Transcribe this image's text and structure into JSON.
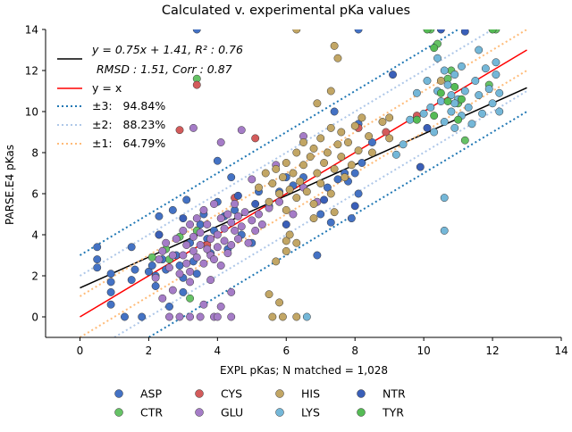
{
  "chart_data": {
    "type": "scatter",
    "title": "Calculated v. experimental pKa values",
    "xlabel": "EXPL pKas; N matched = 1,028",
    "ylabel": "PARSE.E4 pKas",
    "xlim": [
      -1,
      14
    ],
    "ylim": [
      -1,
      14
    ],
    "xticks": [
      0,
      2,
      4,
      6,
      8,
      10,
      12,
      14
    ],
    "yticks": [
      0,
      2,
      4,
      6,
      8,
      10,
      12,
      14
    ],
    "grid": false,
    "lines": [
      {
        "name": "fit",
        "label_line1": "y = 0.75x + 1.41, R² : 0.76",
        "label_line2": "RMSD : 1.51, Corr : 0.87",
        "slope": 0.75,
        "intercept": 1.41,
        "color": "#000000",
        "style": "solid"
      },
      {
        "name": "identity",
        "label": "y = x",
        "slope": 1,
        "intercept": 0,
        "color": "#ff0000",
        "style": "solid"
      },
      {
        "name": "band3",
        "label": "±3:   94.84%",
        "offset": 3,
        "color": "#1f77b4",
        "style": "dotted"
      },
      {
        "name": "band2",
        "label": "±2:   88.23%",
        "offset": 2,
        "color": "#aec7e8",
        "style": "dotted"
      },
      {
        "name": "band1",
        "label": "±1:   64.79%",
        "offset": 1,
        "color": "#ffbb78",
        "style": "dotted"
      }
    ],
    "groups": [
      {
        "name": "ASP",
        "color": "#4472c4",
        "points": [
          [
            0.5,
            3.4
          ],
          [
            0.5,
            2.4
          ],
          [
            0.5,
            2.8
          ],
          [
            0.9,
            2.1
          ],
          [
            0.9,
            1.7
          ],
          [
            0.9,
            1.2
          ],
          [
            0.9,
            0.6
          ],
          [
            1.3,
            0.0
          ],
          [
            1.5,
            3.4
          ],
          [
            1.5,
            1.8
          ],
          [
            1.6,
            2.3
          ],
          [
            1.8,
            0.0
          ],
          [
            2.0,
            2.2
          ],
          [
            2.1,
            2.5
          ],
          [
            2.2,
            2.0
          ],
          [
            2.2,
            1.5
          ],
          [
            2.3,
            4.9
          ],
          [
            2.3,
            4.0
          ],
          [
            2.4,
            2.8
          ],
          [
            2.5,
            2.3
          ],
          [
            2.6,
            0.5
          ],
          [
            2.7,
            5.2
          ],
          [
            2.8,
            3.0
          ],
          [
            2.9,
            2.5
          ],
          [
            3.0,
            1.9
          ],
          [
            3.0,
            1.2
          ],
          [
            3.1,
            5.7
          ],
          [
            3.2,
            3.6
          ],
          [
            3.3,
            2.7
          ],
          [
            3.4,
            2.1
          ],
          [
            3.5,
            4.5
          ],
          [
            3.6,
            5.0
          ],
          [
            3.7,
            3.8
          ],
          [
            3.8,
            3.1
          ],
          [
            3.9,
            4.2
          ],
          [
            4.0,
            7.6
          ],
          [
            4.0,
            5.6
          ],
          [
            4.2,
            4.9
          ],
          [
            4.3,
            3.3
          ],
          [
            4.4,
            6.8
          ],
          [
            4.5,
            5.2
          ],
          [
            4.7,
            4.0
          ],
          [
            5.0,
            3.6
          ],
          [
            5.2,
            6.1
          ],
          [
            5.5,
            5.4
          ],
          [
            5.8,
            6.1
          ],
          [
            6.0,
            6.8
          ],
          [
            6.2,
            6.4
          ],
          [
            6.5,
            6.8
          ],
          [
            7.0,
            5.0
          ],
          [
            7.2,
            6.3
          ],
          [
            7.5,
            6.7
          ],
          [
            7.8,
            6.6
          ],
          [
            8.0,
            7.0
          ],
          [
            8.2,
            7.5
          ],
          [
            8.5,
            8.5
          ],
          [
            8.1,
            9.4
          ],
          [
            8.1,
            14.0
          ],
          [
            7.7,
            7.0
          ],
          [
            6.9,
            3.0
          ],
          [
            3.4,
            14.0
          ],
          [
            7.3,
            4.6
          ],
          [
            7.9,
            4.8
          ],
          [
            8.1,
            6.0
          ],
          [
            7.4,
            10.0
          ]
        ]
      },
      {
        "name": "CTR",
        "color": "#66c266",
        "points": [
          [
            2.1,
            2.9
          ],
          [
            2.5,
            3.3
          ],
          [
            2.9,
            3.9
          ],
          [
            3.4,
            4.2
          ],
          [
            3.2,
            0.9
          ],
          [
            2.6,
            2.8
          ],
          [
            10.2,
            14.0
          ],
          [
            10.4,
            13.3
          ],
          [
            10.7,
            11.6
          ],
          [
            11.0,
            10.4
          ],
          [
            11.2,
            8.6
          ],
          [
            11.9,
            11.3
          ],
          [
            12.1,
            14.0
          ],
          [
            3.4,
            11.6
          ],
          [
            10.8,
            12.0
          ]
        ]
      },
      {
        "name": "CYS",
        "color": "#d35b5b",
        "points": [
          [
            2.9,
            9.1
          ],
          [
            3.4,
            11.3
          ],
          [
            5.1,
            8.7
          ],
          [
            8.1,
            9.2
          ],
          [
            8.9,
            9.0
          ],
          [
            3.7,
            3.5
          ],
          [
            4.5,
            5.8
          ],
          [
            9.8,
            9.8
          ]
        ]
      },
      {
        "name": "GLU",
        "color": "#a57cc7",
        "points": [
          [
            2.2,
            1.9
          ],
          [
            2.3,
            2.8
          ],
          [
            2.4,
            3.2
          ],
          [
            2.5,
            3.6
          ],
          [
            2.6,
            2.4
          ],
          [
            2.7,
            3.0
          ],
          [
            2.8,
            3.8
          ],
          [
            2.9,
            2.1
          ],
          [
            3.0,
            4.2
          ],
          [
            3.0,
            3.0
          ],
          [
            3.1,
            2.6
          ],
          [
            3.1,
            3.5
          ],
          [
            3.2,
            4.5
          ],
          [
            3.2,
            2.2
          ],
          [
            3.3,
            3.2
          ],
          [
            3.3,
            3.9
          ],
          [
            3.4,
            4.8
          ],
          [
            3.4,
            2.9
          ],
          [
            3.5,
            3.5
          ],
          [
            3.5,
            4.1
          ],
          [
            3.6,
            2.6
          ],
          [
            3.6,
            5.2
          ],
          [
            3.7,
            3.3
          ],
          [
            3.7,
            4.5
          ],
          [
            3.8,
            3.0
          ],
          [
            3.8,
            3.8
          ],
          [
            3.9,
            5.5
          ],
          [
            3.9,
            2.8
          ],
          [
            4.0,
            4.0
          ],
          [
            4.0,
            3.4
          ],
          [
            4.1,
            4.8
          ],
          [
            4.1,
            2.5
          ],
          [
            4.2,
            3.7
          ],
          [
            4.2,
            4.3
          ],
          [
            4.3,
            5.0
          ],
          [
            4.3,
            3.1
          ],
          [
            4.4,
            4.6
          ],
          [
            4.4,
            3.5
          ],
          [
            4.5,
            4.2
          ],
          [
            4.5,
            5.5
          ],
          [
            4.6,
            3.8
          ],
          [
            4.6,
            4.9
          ],
          [
            4.7,
            4.4
          ],
          [
            4.8,
            5.1
          ],
          [
            4.9,
            3.6
          ],
          [
            5.0,
            4.7
          ],
          [
            5.1,
            4.2
          ],
          [
            5.2,
            5.0
          ],
          [
            5.3,
            4.5
          ],
          [
            5.5,
            5.3
          ],
          [
            5.8,
            5.6
          ],
          [
            6.2,
            5.0
          ],
          [
            6.5,
            6.3
          ],
          [
            6.9,
            5.6
          ],
          [
            3.3,
            9.2
          ],
          [
            4.1,
            8.5
          ],
          [
            4.7,
            9.1
          ],
          [
            5.0,
            6.7
          ],
          [
            2.6,
            0.0
          ],
          [
            3.5,
            0.0
          ],
          [
            3.9,
            0.0
          ],
          [
            4.1,
            0.5
          ],
          [
            4.4,
            1.2
          ],
          [
            3.2,
            1.7
          ],
          [
            2.9,
            0.0
          ],
          [
            4.4,
            0.0
          ],
          [
            3.6,
            0.6
          ],
          [
            4.0,
            0.0
          ],
          [
            3.2,
            0.0
          ],
          [
            5.7,
            7.4
          ],
          [
            6.5,
            8.8
          ],
          [
            2.4,
            0.9
          ],
          [
            3.8,
            1.8
          ],
          [
            2.7,
            1.3
          ]
        ]
      },
      {
        "name": "HIS",
        "color": "#c2a665",
        "points": [
          [
            5.2,
            6.3
          ],
          [
            5.4,
            7.0
          ],
          [
            5.5,
            5.6
          ],
          [
            5.6,
            6.5
          ],
          [
            5.7,
            7.2
          ],
          [
            5.8,
            6.0
          ],
          [
            5.9,
            6.8
          ],
          [
            6.0,
            5.2
          ],
          [
            6.0,
            7.5
          ],
          [
            6.1,
            6.2
          ],
          [
            6.2,
            7.0
          ],
          [
            6.3,
            5.8
          ],
          [
            6.3,
            8.0
          ],
          [
            6.4,
            6.6
          ],
          [
            6.5,
            7.4
          ],
          [
            6.5,
            8.5
          ],
          [
            6.6,
            6.1
          ],
          [
            6.7,
            7.8
          ],
          [
            6.8,
            8.2
          ],
          [
            6.8,
            5.5
          ],
          [
            6.9,
            7.0
          ],
          [
            7.0,
            8.7
          ],
          [
            7.0,
            6.5
          ],
          [
            7.1,
            7.5
          ],
          [
            7.2,
            8.0
          ],
          [
            7.3,
            6.0
          ],
          [
            7.3,
            9.2
          ],
          [
            7.4,
            7.2
          ],
          [
            7.5,
            8.4
          ],
          [
            7.6,
            7.8
          ],
          [
            7.6,
            9.0
          ],
          [
            7.7,
            6.8
          ],
          [
            7.8,
            8.5
          ],
          [
            7.9,
            7.4
          ],
          [
            8.0,
            9.3
          ],
          [
            8.1,
            8.1
          ],
          [
            8.2,
            9.7
          ],
          [
            8.4,
            8.8
          ],
          [
            8.5,
            8.0
          ],
          [
            8.8,
            9.5
          ],
          [
            9.0,
            8.7
          ],
          [
            6.3,
            14.0
          ],
          [
            7.4,
            13.2
          ],
          [
            7.5,
            12.6
          ],
          [
            7.3,
            11.0
          ],
          [
            6.9,
            10.4
          ],
          [
            9.0,
            9.7
          ],
          [
            5.6,
            0.0
          ],
          [
            5.9,
            0.0
          ],
          [
            6.3,
            0.0
          ],
          [
            6.0,
            3.2
          ],
          [
            5.7,
            2.7
          ],
          [
            5.5,
            1.1
          ],
          [
            5.8,
            0.7
          ],
          [
            6.0,
            3.7
          ],
          [
            6.3,
            3.6
          ],
          [
            7.4,
            5.1
          ],
          [
            6.1,
            4.0
          ],
          [
            6.8,
            4.8
          ],
          [
            10.5,
            11.5
          ]
        ]
      },
      {
        "name": "LYS",
        "color": "#74b7d8",
        "points": [
          [
            9.4,
            8.4
          ],
          [
            9.6,
            9.6
          ],
          [
            9.8,
            10.9
          ],
          [
            10.0,
            9.9
          ],
          [
            10.1,
            11.5
          ],
          [
            10.2,
            10.2
          ],
          [
            10.3,
            9.0
          ],
          [
            10.4,
            11.0
          ],
          [
            10.5,
            10.5
          ],
          [
            10.6,
            9.5
          ],
          [
            10.6,
            12.0
          ],
          [
            10.7,
            11.3
          ],
          [
            10.8,
            10.0
          ],
          [
            10.9,
            9.2
          ],
          [
            10.9,
            11.8
          ],
          [
            11.0,
            10.6
          ],
          [
            11.1,
            9.8
          ],
          [
            11.1,
            12.2
          ],
          [
            11.2,
            11.0
          ],
          [
            11.3,
            10.2
          ],
          [
            11.4,
            9.4
          ],
          [
            11.5,
            11.5
          ],
          [
            11.6,
            10.8
          ],
          [
            11.7,
            9.9
          ],
          [
            11.8,
            12.1
          ],
          [
            11.9,
            11.1
          ],
          [
            12.0,
            10.4
          ],
          [
            12.1,
            11.8
          ],
          [
            12.2,
            10.0
          ],
          [
            12.2,
            10.9
          ],
          [
            10.6,
            5.8
          ],
          [
            10.6,
            4.2
          ],
          [
            9.2,
            7.9
          ],
          [
            6.6,
            0.0
          ],
          [
            12.1,
            12.4
          ],
          [
            11.6,
            13.0
          ],
          [
            10.9,
            10.4
          ],
          [
            10.4,
            12.6
          ],
          [
            10.8,
            10.8
          ]
        ]
      },
      {
        "name": "NTR",
        "color": "#3a5fb8",
        "points": [
          [
            2.3,
            4.0
          ],
          [
            3.0,
            4.8
          ],
          [
            4.6,
            5.9
          ],
          [
            5.1,
            5.5
          ],
          [
            6.0,
            4.5
          ],
          [
            7.1,
            5.7
          ],
          [
            8.0,
            5.4
          ],
          [
            9.1,
            11.8
          ],
          [
            9.9,
            7.3
          ],
          [
            10.1,
            9.2
          ],
          [
            10.5,
            14.0
          ],
          [
            11.2,
            13.9
          ]
        ]
      },
      {
        "name": "TYR",
        "color": "#55bb55",
        "points": [
          [
            9.8,
            9.6
          ],
          [
            10.3,
            9.8
          ],
          [
            10.5,
            10.9
          ],
          [
            10.7,
            10.5
          ],
          [
            10.9,
            11.2
          ],
          [
            11.0,
            9.6
          ],
          [
            10.3,
            13.1
          ],
          [
            10.1,
            14.0
          ],
          [
            12.0,
            14.0
          ],
          [
            11.1,
            10.6
          ]
        ]
      }
    ]
  }
}
